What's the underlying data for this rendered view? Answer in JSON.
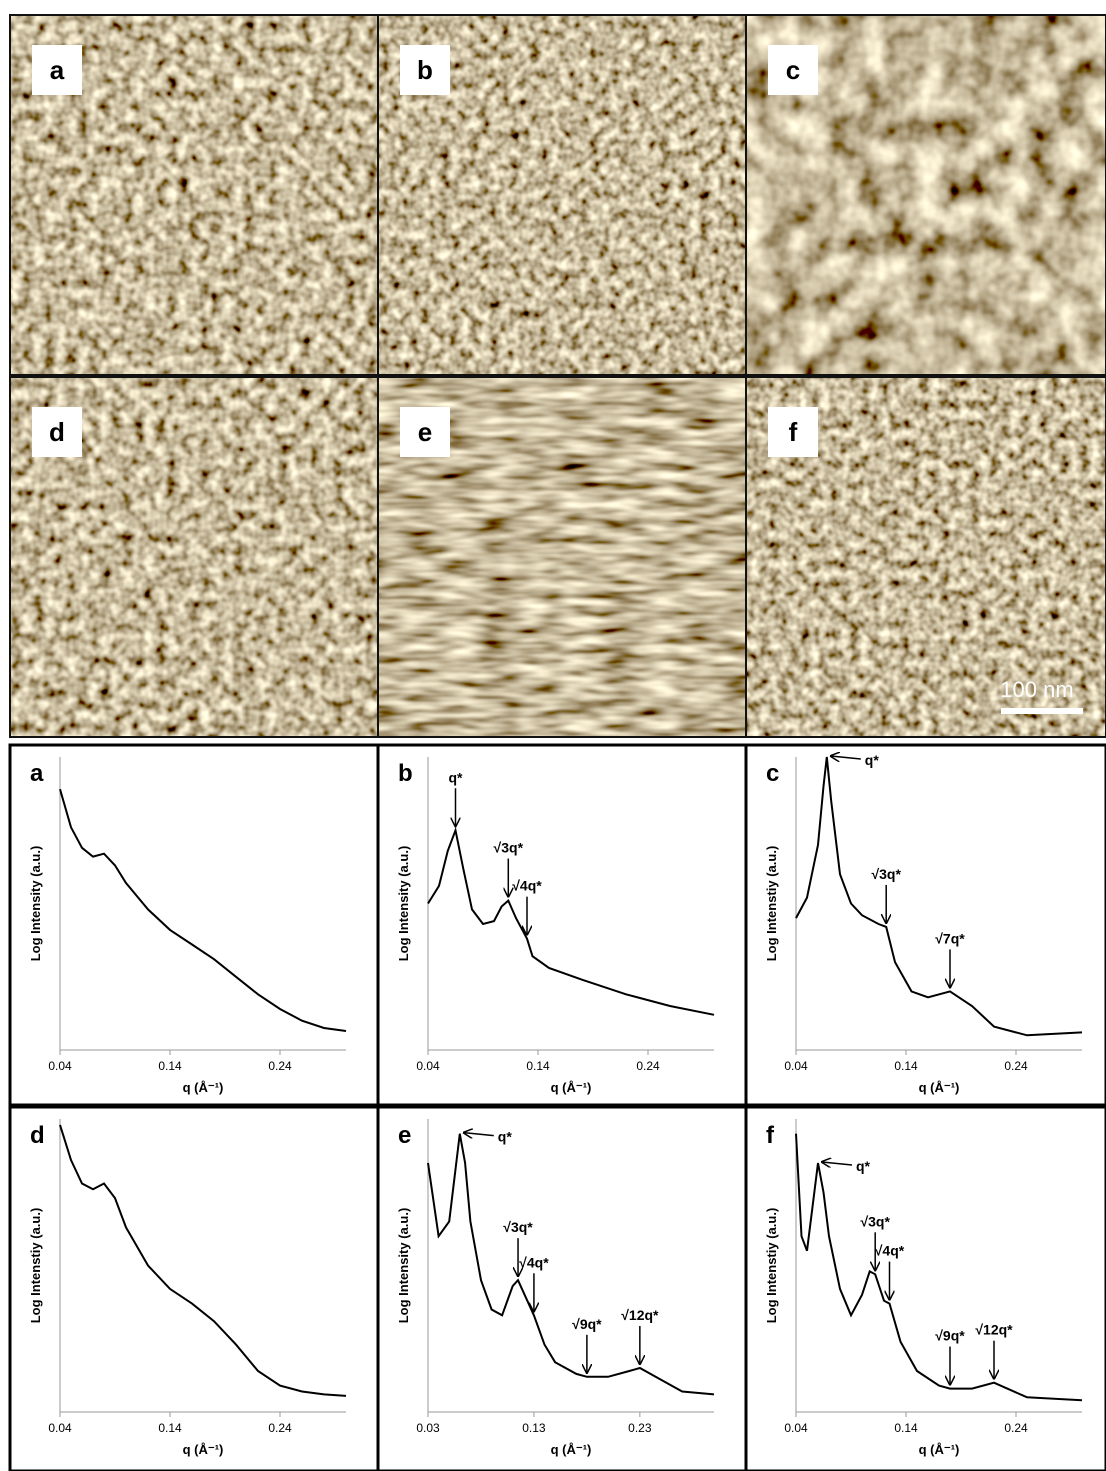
{
  "images": [
    {
      "label": "a"
    },
    {
      "label": "b"
    },
    {
      "label": "c"
    },
    {
      "label": "d"
    },
    {
      "label": "e"
    },
    {
      "label": "f"
    }
  ],
  "scale_bar": "100 nm",
  "chart_data": [
    {
      "type": "line",
      "title": "a",
      "xlabel": "q (Å⁻¹)",
      "ylabel": "Log Intensity (a.u.)",
      "xlim": [
        0.04,
        0.3
      ],
      "ylim": [
        0,
        10
      ],
      "xticks": [
        0.04,
        0.14,
        0.24
      ],
      "color": "#000000",
      "x": [
        0.04,
        0.05,
        0.06,
        0.07,
        0.08,
        0.09,
        0.1,
        0.12,
        0.14,
        0.16,
        0.18,
        0.2,
        0.22,
        0.24,
        0.26,
        0.28,
        0.3
      ],
      "values": [
        8.9,
        7.6,
        6.9,
        6.6,
        6.7,
        6.3,
        5.7,
        4.8,
        4.1,
        3.6,
        3.1,
        2.5,
        1.9,
        1.4,
        1.0,
        0.75,
        0.65
      ],
      "annotations": []
    },
    {
      "type": "line",
      "title": "b",
      "xlabel": "q (Å⁻¹)",
      "ylabel": "Log Intensity (a.u.)",
      "xlim": [
        0.04,
        0.3
      ],
      "ylim": [
        0,
        10
      ],
      "xticks": [
        0.04,
        0.14,
        0.24
      ],
      "color": "#000000",
      "x": [
        0.04,
        0.05,
        0.058,
        0.065,
        0.072,
        0.08,
        0.09,
        0.1,
        0.107,
        0.113,
        0.12,
        0.13,
        0.135,
        0.15,
        0.18,
        0.22,
        0.26,
        0.3
      ],
      "values": [
        5.0,
        5.6,
        6.8,
        7.5,
        6.2,
        4.8,
        4.3,
        4.4,
        4.9,
        5.1,
        4.5,
        3.8,
        3.2,
        2.8,
        2.4,
        1.9,
        1.5,
        1.2
      ],
      "annotations": [
        {
          "text": "q*",
          "x": 0.065
        },
        {
          "text": "√3q*",
          "x": 0.113
        },
        {
          "text": "√4q*",
          "x": 0.13
        }
      ]
    },
    {
      "type": "line",
      "title": "c",
      "xlabel": "q (Å⁻¹)",
      "ylabel": "Log Intenstiy (a.u.)",
      "xlim": [
        0.04,
        0.3
      ],
      "ylim": [
        0,
        10
      ],
      "xticks": [
        0.04,
        0.14,
        0.24
      ],
      "color": "#000000",
      "x": [
        0.04,
        0.05,
        0.06,
        0.065,
        0.068,
        0.072,
        0.08,
        0.09,
        0.1,
        0.115,
        0.122,
        0.13,
        0.145,
        0.16,
        0.18,
        0.2,
        0.22,
        0.25,
        0.3
      ],
      "values": [
        4.5,
        5.2,
        7.0,
        9.0,
        10,
        8.5,
        6.0,
        5.0,
        4.6,
        4.3,
        4.2,
        3.0,
        2.0,
        1.8,
        2.0,
        1.5,
        0.8,
        0.5,
        0.6
      ],
      "annotations": [
        {
          "text": "q*",
          "x": 0.068
        },
        {
          "text": "√3q*",
          "x": 0.122
        },
        {
          "text": "√7q*",
          "x": 0.18
        }
      ]
    },
    {
      "type": "line",
      "title": "d",
      "xlabel": "q (Å⁻¹)",
      "ylabel": "Log Intenstiy (a.u.)",
      "xlim": [
        0.04,
        0.3
      ],
      "ylim": [
        0,
        10
      ],
      "xticks": [
        0.04,
        0.14,
        0.24
      ],
      "color": "#000000",
      "x": [
        0.04,
        0.05,
        0.06,
        0.07,
        0.08,
        0.09,
        0.1,
        0.12,
        0.14,
        0.16,
        0.18,
        0.2,
        0.22,
        0.24,
        0.26,
        0.28,
        0.3
      ],
      "values": [
        9.8,
        8.6,
        7.8,
        7.6,
        7.8,
        7.3,
        6.3,
        5.0,
        4.2,
        3.7,
        3.1,
        2.3,
        1.4,
        0.9,
        0.7,
        0.6,
        0.55
      ],
      "annotations": []
    },
    {
      "type": "line",
      "title": "e",
      "xlabel": "q (Å⁻¹)",
      "ylabel": "Log Intensity (a.u.)",
      "xlim": [
        0.03,
        0.3
      ],
      "ylim": [
        0,
        10
      ],
      "xticks": [
        0.03,
        0.13,
        0.23
      ],
      "color": "#000000",
      "x": [
        0.03,
        0.04,
        0.05,
        0.055,
        0.06,
        0.065,
        0.07,
        0.08,
        0.09,
        0.1,
        0.11,
        0.115,
        0.125,
        0.13,
        0.14,
        0.15,
        0.17,
        0.18,
        0.2,
        0.22,
        0.23,
        0.25,
        0.27,
        0.3
      ],
      "values": [
        8.5,
        6.0,
        6.5,
        8.0,
        9.5,
        8.5,
        6.5,
        4.5,
        3.5,
        3.3,
        4.3,
        4.5,
        3.7,
        3.3,
        2.3,
        1.7,
        1.3,
        1.2,
        1.2,
        1.4,
        1.5,
        1.1,
        0.7,
        0.6
      ],
      "annotations": [
        {
          "text": "q*",
          "x": 0.06
        },
        {
          "text": "√3q*",
          "x": 0.115
        },
        {
          "text": "√4q*",
          "x": 0.13
        },
        {
          "text": "√9q*",
          "x": 0.18
        },
        {
          "text": "√12q*",
          "x": 0.23
        }
      ]
    },
    {
      "type": "line",
      "title": "f",
      "xlabel": "q (Å⁻¹)",
      "ylabel": "Log Intenstiy (a.u.)",
      "xlim": [
        0.04,
        0.3
      ],
      "ylim": [
        0,
        10
      ],
      "xticks": [
        0.04,
        0.14,
        0.24
      ],
      "color": "#000000",
      "x": [
        0.04,
        0.045,
        0.05,
        0.055,
        0.06,
        0.065,
        0.07,
        0.08,
        0.09,
        0.1,
        0.107,
        0.112,
        0.12,
        0.125,
        0.135,
        0.15,
        0.17,
        0.18,
        0.2,
        0.22,
        0.25,
        0.3
      ],
      "values": [
        9.5,
        6.0,
        5.5,
        7.0,
        8.5,
        7.5,
        6.0,
        4.2,
        3.3,
        4.0,
        4.8,
        4.7,
        3.8,
        3.7,
        2.4,
        1.4,
        0.9,
        0.8,
        0.8,
        1.0,
        0.5,
        0.4
      ],
      "annotations": [
        {
          "text": "q*",
          "x": 0.06
        },
        {
          "text": "√3q*",
          "x": 0.112
        },
        {
          "text": "√4q*",
          "x": 0.125
        },
        {
          "text": "√9q*",
          "x": 0.18
        },
        {
          "text": "√12q*",
          "x": 0.22
        }
      ]
    }
  ]
}
